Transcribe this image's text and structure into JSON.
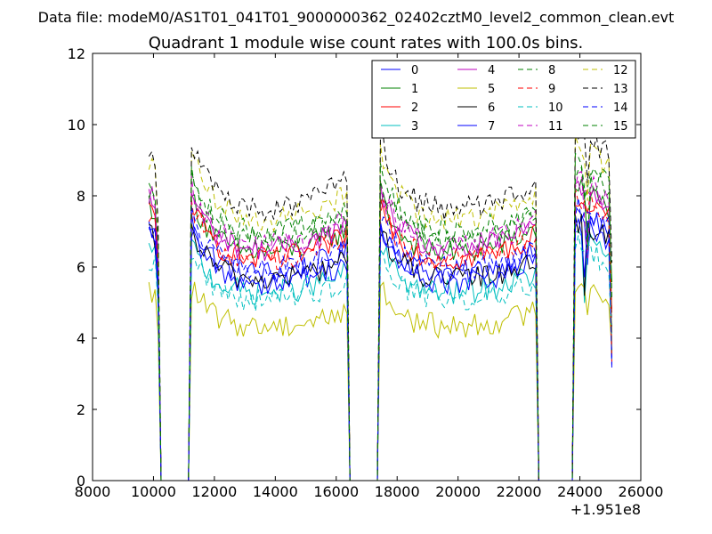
{
  "header": {
    "file_label": "Data file: modeM0/AS1T01_041T01_9000000362_02402cztM0_level2_common_clean.evt"
  },
  "chart_data": {
    "type": "line",
    "title": "Quadrant 1 module wise count rates with 100.0s bins.",
    "xlabel": "",
    "ylabel": "",
    "x_offset_label": "+1.951e8",
    "xlim": [
      8000,
      26000
    ],
    "ylim": [
      0,
      12
    ],
    "x_ticks": [
      8000,
      10000,
      12000,
      14000,
      16000,
      18000,
      20000,
      22000,
      24000,
      26000
    ],
    "x_tick_labels": [
      "8000",
      "10000",
      "12000",
      "14000",
      "16000",
      "18000",
      "20000",
      "22000",
      "24000",
      "26000"
    ],
    "y_ticks": [
      0,
      2,
      4,
      6,
      8,
      10,
      12
    ],
    "y_tick_labels": [
      "0",
      "2",
      "4",
      "6",
      "8",
      "10",
      "12"
    ],
    "grid": false,
    "legend_position": "top-right",
    "bin_seconds": 100,
    "segments": [
      {
        "start": 9850,
        "end": 10150
      },
      {
        "start": 11250,
        "end": 16350
      },
      {
        "start": 17450,
        "end": 22550
      },
      {
        "start": 23850,
        "end": 25050
      }
    ],
    "series": [
      {
        "name": "0",
        "color": "#0000ff",
        "dash": "solid",
        "level": 6.2
      },
      {
        "name": "1",
        "color": "#008000",
        "dash": "solid",
        "level": 6.8
      },
      {
        "name": "2",
        "color": "#ff0000",
        "dash": "solid",
        "level": 6.6
      },
      {
        "name": "3",
        "color": "#00bfbf",
        "dash": "solid",
        "level": 5.6
      },
      {
        "name": "4",
        "color": "#bf00bf",
        "dash": "solid",
        "level": 6.9
      },
      {
        "name": "5",
        "color": "#bfbf00",
        "dash": "solid",
        "level": 4.6
      },
      {
        "name": "6",
        "color": "#000000",
        "dash": "solid",
        "level": 6.0
      },
      {
        "name": "7",
        "color": "#0000ff",
        "dash": "solid",
        "level": 5.9
      },
      {
        "name": "8",
        "color": "#008000",
        "dash": "dashed",
        "level": 7.2
      },
      {
        "name": "9",
        "color": "#ff0000",
        "dash": "dashed",
        "level": 6.6
      },
      {
        "name": "10",
        "color": "#00bfbf",
        "dash": "dashed",
        "level": 5.4
      },
      {
        "name": "11",
        "color": "#bf00bf",
        "dash": "dashed",
        "level": 7.0
      },
      {
        "name": "12",
        "color": "#bfbf00",
        "dash": "dashed",
        "level": 7.8
      },
      {
        "name": "13",
        "color": "#000000",
        "dash": "dashed",
        "level": 8.1
      },
      {
        "name": "14",
        "color": "#0000ff",
        "dash": "dashed",
        "level": 6.3
      },
      {
        "name": "15",
        "color": "#008000",
        "dash": "dashed",
        "level": 7.4
      }
    ]
  }
}
